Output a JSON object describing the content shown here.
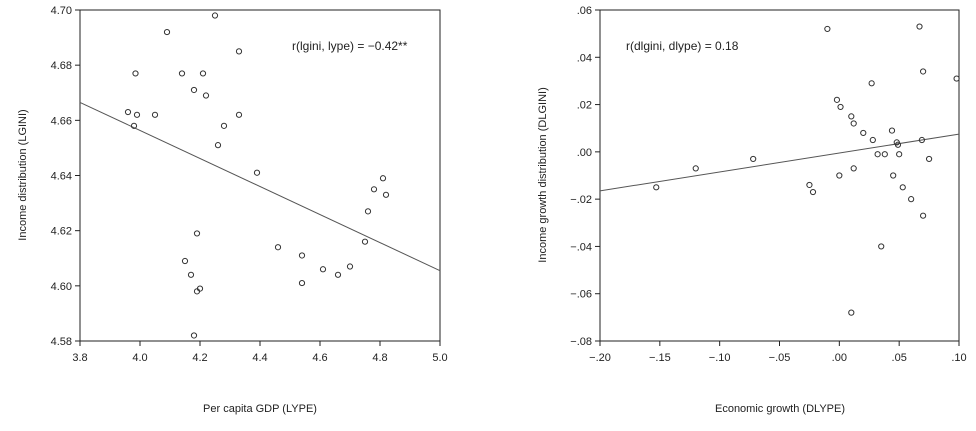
{
  "chart_data": [
    {
      "type": "scatter",
      "title": "",
      "xlabel": "Per capita GDP (LYPE)",
      "ylabel": "Income distribution (LGINI)",
      "annotation": "r(lgini, lype) = −0.42**",
      "xlim": [
        3.8,
        5.0
      ],
      "ylim": [
        4.58,
        4.7
      ],
      "xticks": [
        "3.8",
        "4.0",
        "4.2",
        "4.4",
        "4.6",
        "4.8",
        "5.0"
      ],
      "yticks": [
        "4.58",
        "4.60",
        "4.62",
        "4.64",
        "4.66",
        "4.68",
        "4.70"
      ],
      "grid": false,
      "fit_line": {
        "x": [
          3.8,
          5.0
        ],
        "y": [
          4.6665,
          4.6055
        ]
      },
      "points": [
        {
          "x": 3.96,
          "y": 4.663
        },
        {
          "x": 3.98,
          "y": 4.658
        },
        {
          "x": 3.99,
          "y": 4.662
        },
        {
          "x": 3.985,
          "y": 4.677
        },
        {
          "x": 4.05,
          "y": 4.662
        },
        {
          "x": 4.09,
          "y": 4.692
        },
        {
          "x": 4.14,
          "y": 4.677
        },
        {
          "x": 4.18,
          "y": 4.671
        },
        {
          "x": 4.21,
          "y": 4.677
        },
        {
          "x": 4.22,
          "y": 4.669
        },
        {
          "x": 4.25,
          "y": 4.698
        },
        {
          "x": 4.26,
          "y": 4.651
        },
        {
          "x": 4.28,
          "y": 4.658
        },
        {
          "x": 4.33,
          "y": 4.685
        },
        {
          "x": 4.33,
          "y": 4.662
        },
        {
          "x": 4.39,
          "y": 4.641
        },
        {
          "x": 4.15,
          "y": 4.609
        },
        {
          "x": 4.17,
          "y": 4.604
        },
        {
          "x": 4.19,
          "y": 4.619
        },
        {
          "x": 4.19,
          "y": 4.598
        },
        {
          "x": 4.2,
          "y": 4.599
        },
        {
          "x": 4.18,
          "y": 4.582
        },
        {
          "x": 4.46,
          "y": 4.614
        },
        {
          "x": 4.54,
          "y": 4.611
        },
        {
          "x": 4.54,
          "y": 4.601
        },
        {
          "x": 4.61,
          "y": 4.606
        },
        {
          "x": 4.66,
          "y": 4.604
        },
        {
          "x": 4.7,
          "y": 4.607
        },
        {
          "x": 4.75,
          "y": 4.616
        },
        {
          "x": 4.76,
          "y": 4.627
        },
        {
          "x": 4.78,
          "y": 4.635
        },
        {
          "x": 4.81,
          "y": 4.639
        },
        {
          "x": 4.82,
          "y": 4.633
        }
      ]
    },
    {
      "type": "scatter",
      "title": "",
      "xlabel": "Economic growth (DLYPE)",
      "ylabel": "Income growth distribution (DLGINI)",
      "annotation": "r(dlgini, dlype) = 0.18",
      "xlim": [
        -0.2,
        0.1
      ],
      "ylim": [
        -0.08,
        0.06
      ],
      "xticks": [
        "−.20",
        "−.15",
        "−.10",
        "−.05",
        ".00",
        ".05",
        ".10"
      ],
      "yticks": [
        "−.08",
        "−.06",
        "−.04",
        "−.02",
        ".00",
        ".02",
        ".04",
        ".06"
      ],
      "grid": false,
      "fit_line": {
        "x": [
          -0.2,
          0.1
        ],
        "y": [
          -0.0165,
          0.0075
        ]
      },
      "points": [
        {
          "x": -0.153,
          "y": -0.015
        },
        {
          "x": -0.12,
          "y": -0.007
        },
        {
          "x": -0.072,
          "y": -0.003
        },
        {
          "x": -0.025,
          "y": -0.014
        },
        {
          "x": -0.022,
          "y": -0.017
        },
        {
          "x": -0.01,
          "y": 0.052
        },
        {
          "x": -0.002,
          "y": 0.022
        },
        {
          "x": 0.001,
          "y": 0.019
        },
        {
          "x": 0.0,
          "y": -0.01
        },
        {
          "x": 0.01,
          "y": 0.015
        },
        {
          "x": 0.012,
          "y": 0.012
        },
        {
          "x": 0.012,
          "y": -0.007
        },
        {
          "x": 0.02,
          "y": 0.008
        },
        {
          "x": 0.027,
          "y": 0.029
        },
        {
          "x": 0.028,
          "y": 0.005
        },
        {
          "x": 0.032,
          "y": -0.001
        },
        {
          "x": 0.038,
          "y": -0.001
        },
        {
          "x": 0.035,
          "y": -0.04
        },
        {
          "x": 0.044,
          "y": 0.009
        },
        {
          "x": 0.045,
          "y": -0.01
        },
        {
          "x": 0.048,
          "y": 0.004
        },
        {
          "x": 0.049,
          "y": 0.003
        },
        {
          "x": 0.05,
          "y": -0.001
        },
        {
          "x": 0.053,
          "y": -0.015
        },
        {
          "x": 0.06,
          "y": -0.02
        },
        {
          "x": 0.067,
          "y": 0.053
        },
        {
          "x": 0.069,
          "y": 0.005
        },
        {
          "x": 0.07,
          "y": 0.034
        },
        {
          "x": 0.07,
          "y": -0.027
        },
        {
          "x": 0.075,
          "y": -0.003
        },
        {
          "x": 0.01,
          "y": -0.068
        },
        {
          "x": 0.098,
          "y": 0.031
        }
      ]
    }
  ]
}
